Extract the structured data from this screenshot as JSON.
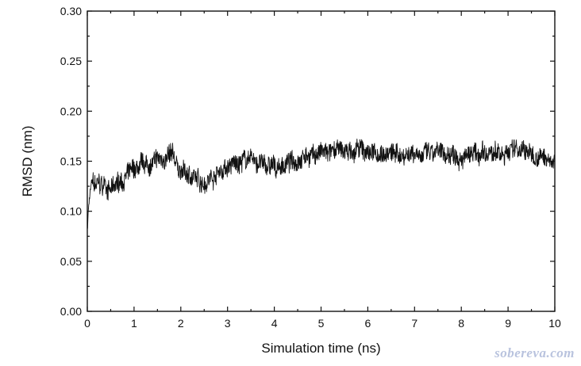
{
  "chart_data": {
    "type": "line",
    "title": "",
    "xlabel": "Simulation time (ns)",
    "ylabel": "RMSD (nm)",
    "xlim": [
      0,
      10
    ],
    "ylim": [
      0.0,
      0.3
    ],
    "xticks": [
      "0",
      "1",
      "2",
      "3",
      "4",
      "5",
      "6",
      "7",
      "8",
      "9",
      "10"
    ],
    "yticks": [
      "0.00",
      "0.05",
      "0.10",
      "0.15",
      "0.20",
      "0.25",
      "0.30"
    ],
    "grid": false,
    "legend": "none",
    "line_color": "#111111",
    "series": [
      {
        "x": [
          0.0,
          0.02,
          0.05,
          0.1,
          0.15,
          0.2,
          0.3,
          0.4,
          0.5,
          0.6,
          0.7,
          0.8,
          0.9,
          1.0,
          1.2,
          1.4,
          1.6,
          1.8,
          2.0,
          2.2,
          2.4,
          2.6,
          2.8,
          3.0,
          3.2,
          3.4,
          3.6,
          3.8,
          4.0,
          4.2,
          4.4,
          4.6,
          4.8,
          5.0,
          5.2,
          5.4,
          5.6,
          5.8,
          6.0,
          6.2,
          6.4,
          6.6,
          6.8,
          7.0,
          7.2,
          7.4,
          7.6,
          7.8,
          8.0,
          8.2,
          8.4,
          8.6,
          8.8,
          9.0,
          9.2,
          9.4,
          9.6,
          9.8,
          10.0
        ],
        "values": [
          0.08,
          0.1,
          0.115,
          0.13,
          0.125,
          0.127,
          0.125,
          0.126,
          0.12,
          0.124,
          0.13,
          0.133,
          0.138,
          0.14,
          0.145,
          0.147,
          0.152,
          0.155,
          0.14,
          0.135,
          0.13,
          0.132,
          0.14,
          0.143,
          0.148,
          0.152,
          0.15,
          0.145,
          0.143,
          0.146,
          0.15,
          0.155,
          0.157,
          0.158,
          0.158,
          0.16,
          0.16,
          0.16,
          0.16,
          0.158,
          0.158,
          0.157,
          0.157,
          0.16,
          0.157,
          0.156,
          0.157,
          0.157,
          0.157,
          0.155,
          0.155,
          0.156,
          0.158,
          0.16,
          0.165,
          0.158,
          0.155,
          0.152,
          0.15
        ]
      }
    ]
  },
  "watermark": "sobereva.com"
}
